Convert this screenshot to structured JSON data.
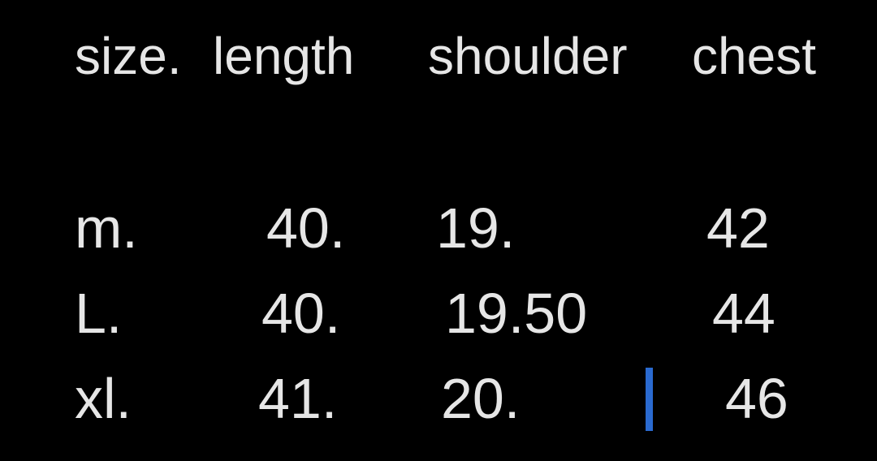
{
  "table": {
    "headers": [
      "size.",
      "length",
      "shoulder",
      "chest"
    ],
    "rows": [
      [
        "m.",
        "40.",
        "19.",
        "42"
      ],
      [
        "L.",
        "40.",
        "19.50",
        "44"
      ],
      [
        "xl.",
        "41.",
        "20.",
        "46"
      ]
    ]
  },
  "colors": {
    "text": "#e6e6e6",
    "background": "#000000",
    "cursor": "#2a6ad0"
  }
}
